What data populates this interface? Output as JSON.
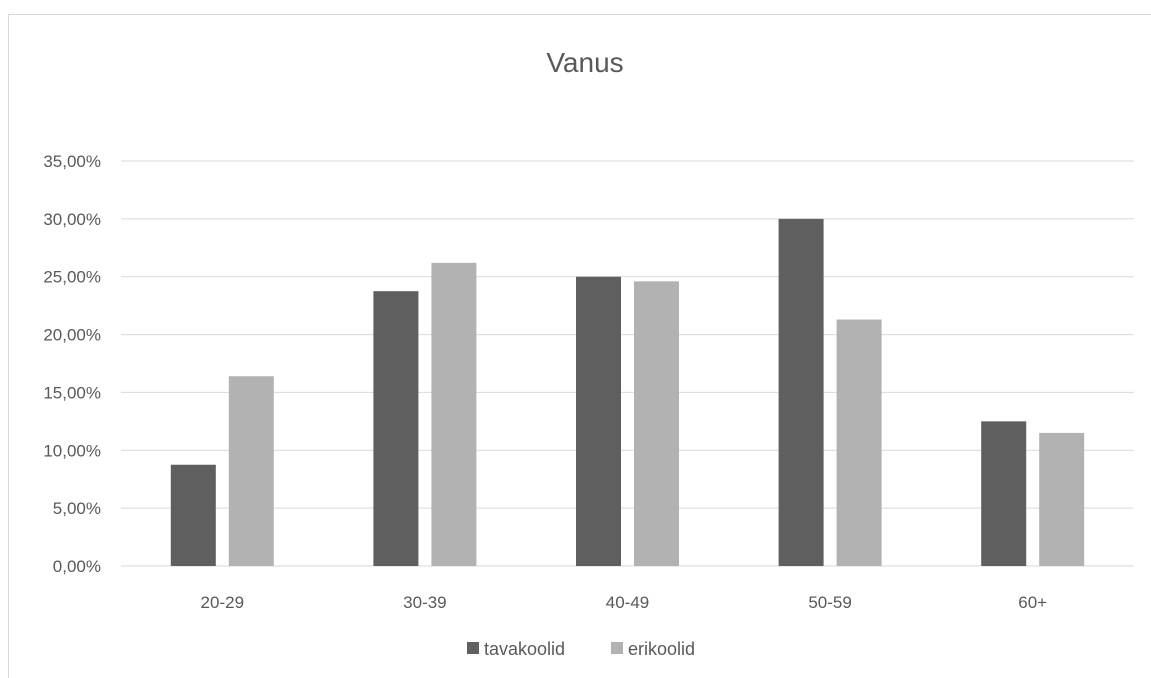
{
  "chart_data": {
    "type": "bar",
    "title": "Vanus",
    "xlabel": "",
    "ylabel": "",
    "categories": [
      "20-29",
      "30-39",
      "40-49",
      "50-59",
      "60+"
    ],
    "series": [
      {
        "name": "tavakoolid",
        "color": "#5f5f5f",
        "values": [
          8.75,
          23.75,
          25.0,
          30.0,
          12.5
        ]
      },
      {
        "name": "erikoolid",
        "color": "#b2b2b2",
        "values": [
          16.4,
          26.2,
          24.6,
          21.3,
          11.5
        ]
      }
    ],
    "ylim": [
      0,
      35
    ],
    "yticks": [
      "0,00%",
      "5,00%",
      "10,00%",
      "15,00%",
      "20,00%",
      "25,00%",
      "30,00%",
      "35,00%"
    ],
    "grid": true,
    "gridline_color": "#d9d9d9",
    "legend_position": "bottom"
  }
}
